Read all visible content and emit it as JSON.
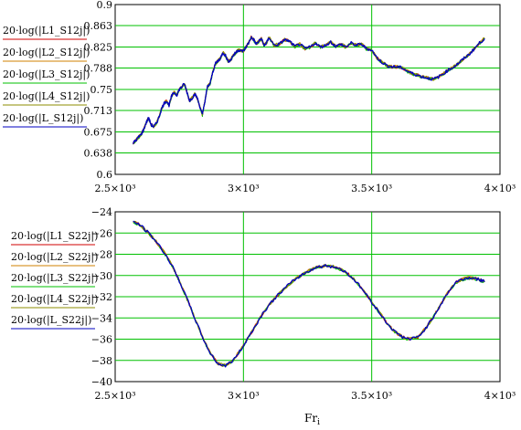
{
  "chart_data": [
    {
      "type": "line",
      "xlim": [
        2500,
        4000
      ],
      "ylim": [
        0.6,
        0.9
      ],
      "grid": true,
      "x_ticks": [
        2500,
        3000,
        3500,
        4000
      ],
      "x_tick_labels": [
        "2.5×10³",
        "3×10³",
        "3.5×10³",
        "4×10³"
      ],
      "y_ticks": [
        0.6,
        0.638,
        0.675,
        0.713,
        0.75,
        0.788,
        0.825,
        0.863,
        0.9
      ],
      "y_tick_labels": [
        "0.6",
        "0.638",
        "0.675",
        "0.713",
        "0.75",
        "0.788",
        "0.825",
        "0.863",
        "0.9"
      ],
      "series": [
        {
          "name": "20·log(|L1_S12j|)",
          "color": "#d00000"
        },
        {
          "name": "20·log(|L2_S12j|)",
          "color": "#d08000"
        },
        {
          "name": "20·log(|L3_S12j|)",
          "color": "#00c000"
        },
        {
          "name": "20·log(|L4_S12j|)",
          "color": "#8c8c00"
        },
        {
          "name": "20·log(|L_S12j|)",
          "color": "#0000c0"
        }
      ],
      "x": [
        2570,
        2580,
        2590,
        2600,
        2610,
        2620,
        2630,
        2640,
        2650,
        2660,
        2670,
        2680,
        2690,
        2700,
        2710,
        2720,
        2730,
        2740,
        2750,
        2760,
        2770,
        2780,
        2790,
        2800,
        2810,
        2820,
        2830,
        2840,
        2850,
        2860,
        2870,
        2880,
        2890,
        2900,
        2910,
        2920,
        2930,
        2940,
        2950,
        2960,
        2970,
        2980,
        2990,
        3000,
        3010,
        3020,
        3030,
        3040,
        3050,
        3060,
        3070,
        3080,
        3090,
        3100,
        3120,
        3140,
        3160,
        3180,
        3200,
        3220,
        3240,
        3260,
        3280,
        3300,
        3320,
        3340,
        3360,
        3380,
        3400,
        3420,
        3440,
        3460,
        3480,
        3500,
        3520,
        3540,
        3560,
        3580,
        3600,
        3620,
        3640,
        3660,
        3680,
        3700,
        3720,
        3740,
        3760,
        3780,
        3800,
        3820,
        3840,
        3860,
        3880,
        3900,
        3920,
        3940
      ],
      "y": [
        0.655,
        0.66,
        0.665,
        0.67,
        0.678,
        0.69,
        0.7,
        0.688,
        0.684,
        0.69,
        0.7,
        0.715,
        0.725,
        0.73,
        0.722,
        0.738,
        0.745,
        0.74,
        0.75,
        0.755,
        0.76,
        0.745,
        0.73,
        0.735,
        0.742,
        0.735,
        0.72,
        0.705,
        0.73,
        0.755,
        0.76,
        0.78,
        0.795,
        0.8,
        0.805,
        0.815,
        0.81,
        0.8,
        0.802,
        0.81,
        0.815,
        0.82,
        0.818,
        0.818,
        0.825,
        0.832,
        0.842,
        0.838,
        0.83,
        0.835,
        0.84,
        0.828,
        0.832,
        0.842,
        0.828,
        0.83,
        0.838,
        0.835,
        0.826,
        0.83,
        0.822,
        0.825,
        0.832,
        0.825,
        0.828,
        0.834,
        0.826,
        0.83,
        0.825,
        0.832,
        0.828,
        0.83,
        0.822,
        0.82,
        0.806,
        0.798,
        0.792,
        0.79,
        0.79,
        0.788,
        0.782,
        0.778,
        0.775,
        0.772,
        0.77,
        0.768,
        0.772,
        0.778,
        0.785,
        0.79,
        0.797,
        0.805,
        0.812,
        0.822,
        0.832,
        0.84
      ]
    },
    {
      "type": "line",
      "xlim": [
        2500,
        4000
      ],
      "ylim": [
        -40,
        -24
      ],
      "grid": true,
      "xlabel": "Fr",
      "xlabel_sub": "i",
      "x_ticks": [
        2500,
        3000,
        3500,
        4000
      ],
      "x_tick_labels": [
        "2.5×10³",
        "3×10³",
        "3.5×10³",
        "4×10³"
      ],
      "y_ticks": [
        -40,
        -38,
        -36,
        -34,
        -32,
        -30,
        -28,
        -26,
        -24
      ],
      "y_tick_labels": [
        "−40",
        "−38",
        "−36",
        "−34",
        "−32",
        "−30",
        "−28",
        "−26",
        "−24"
      ],
      "series": [
        {
          "name": "20·log(|L1_S22j|)",
          "color": "#d00000"
        },
        {
          "name": "20·log(|L2_S22j|)",
          "color": "#d08000"
        },
        {
          "name": "20·log(|L3_S22j|)",
          "color": "#00c000"
        },
        {
          "name": "20·log(|L4_S22j|)",
          "color": "#8c8c00"
        },
        {
          "name": "20·log(|L_S22j|)",
          "color": "#0000c0"
        }
      ],
      "x": [
        2570,
        2600,
        2630,
        2660,
        2690,
        2720,
        2750,
        2780,
        2810,
        2840,
        2870,
        2900,
        2930,
        2960,
        2990,
        3020,
        3050,
        3080,
        3110,
        3140,
        3170,
        3200,
        3230,
        3260,
        3290,
        3320,
        3350,
        3380,
        3410,
        3440,
        3470,
        3500,
        3530,
        3560,
        3590,
        3620,
        3650,
        3680,
        3710,
        3740,
        3770,
        3800,
        3830,
        3860,
        3890,
        3920,
        3940
      ],
      "y": [
        -24.9,
        -25.3,
        -26.0,
        -26.8,
        -27.8,
        -29.0,
        -30.5,
        -32.2,
        -34.0,
        -35.8,
        -37.3,
        -38.3,
        -38.5,
        -38.0,
        -37.0,
        -35.8,
        -34.6,
        -33.4,
        -32.5,
        -31.7,
        -31.0,
        -30.4,
        -29.9,
        -29.5,
        -29.2,
        -29.1,
        -29.15,
        -29.4,
        -29.9,
        -30.6,
        -31.5,
        -32.5,
        -33.5,
        -34.5,
        -35.3,
        -35.8,
        -36.0,
        -35.8,
        -35.0,
        -33.9,
        -32.7,
        -31.5,
        -30.6,
        -30.3,
        -30.2,
        -30.4,
        -30.6
      ]
    }
  ]
}
